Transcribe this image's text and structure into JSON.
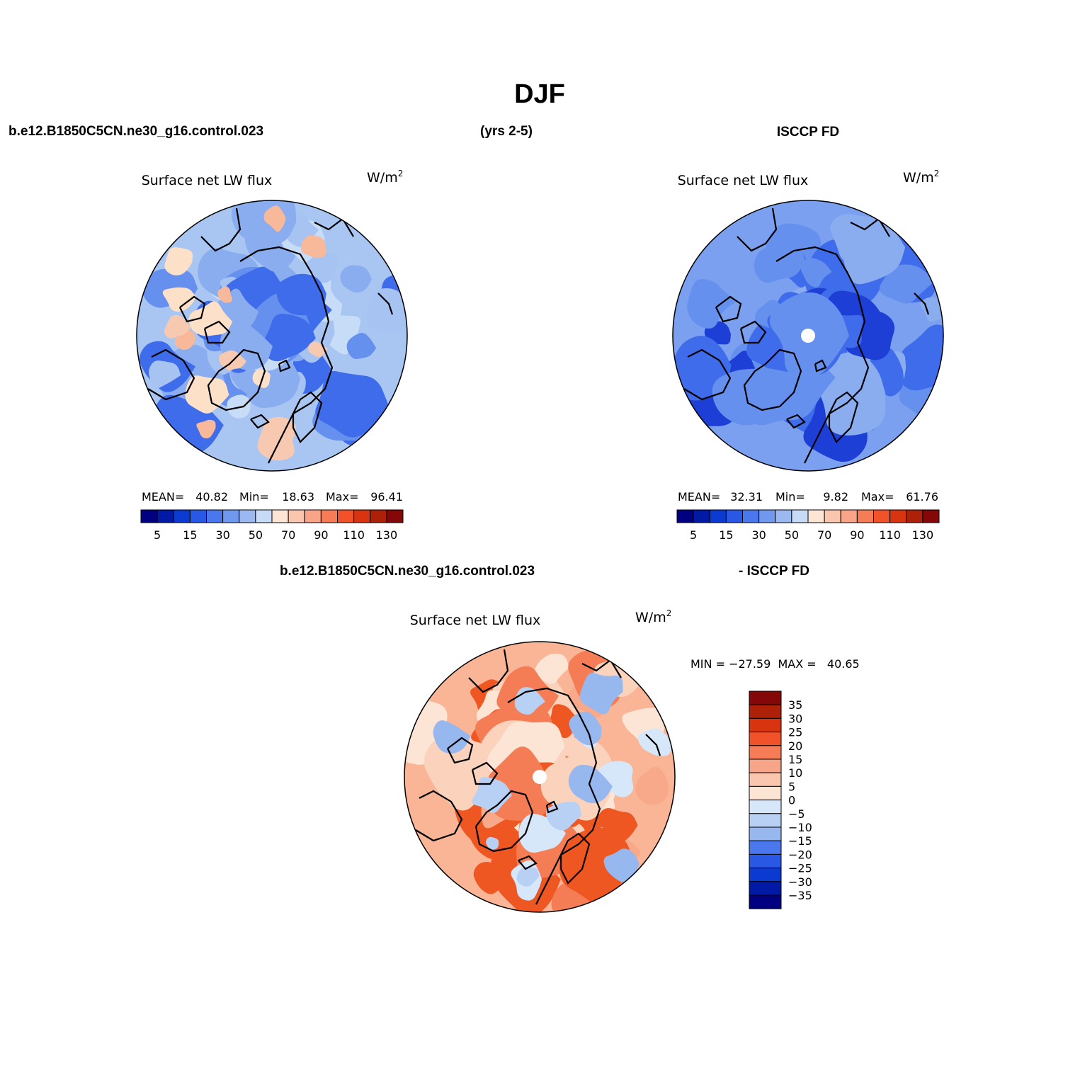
{
  "figure": {
    "season": "DJF",
    "case_name": "b.e12.B1850C5CN.ne30_g16.control.023",
    "years": "(yrs 2-5)",
    "obs_name": "ISCCP FD",
    "diff_case_name": "b.e12.B1850C5CN.ne30_g16.control.023",
    "diff_obs_name": "- ISCCP FD"
  },
  "panels": [
    {
      "id": "model",
      "variable": "Surface net LW flux",
      "units_base": "W/m",
      "units_exp": "2",
      "stats": {
        "mean_label": "MEAN=",
        "mean": "40.82",
        "min_label": "Min=",
        "min": "18.63",
        "max_label": "Max=",
        "max": "96.41"
      },
      "field_palette": [
        "#c7dcf6",
        "#a6c3f2",
        "#8aadf0",
        "#6590ee",
        "#3f6cea"
      ],
      "warm_patches": [
        "#fde0c8",
        "#f8b89a",
        "#f7c9b0"
      ]
    },
    {
      "id": "obs",
      "variable": "Surface net LW flux",
      "units_base": "W/m",
      "units_exp": "2",
      "stats": {
        "mean_label": "MEAN=",
        "mean": "32.31",
        "min_label": "Min=",
        "min": "9.82",
        "max_label": "Max=",
        "max": "61.76"
      },
      "field_palette": [
        "#8aadf0",
        "#6590ee",
        "#3f6cea",
        "#1d3fd6"
      ],
      "pole_hole": true
    },
    {
      "id": "diff",
      "variable": "Surface net LW flux",
      "units_base": "W/m",
      "units_exp": "2",
      "stats_text": "MIN = −27.59  MAX =   40.65",
      "field_palette": [
        "#fbd2bb",
        "#f8a989",
        "#f47d56",
        "#ef5722",
        "#fde5d6"
      ],
      "cool_patches": [
        "#d6e7fa",
        "#b8d0f4",
        "#97b7ef"
      ],
      "pole_hole": true
    }
  ],
  "abs_colorbar": {
    "colors": [
      "#000080",
      "#001aa6",
      "#0a3ad0",
      "#2858e4",
      "#4a78ec",
      "#7198ef",
      "#9cb8f1",
      "#c8dbf6",
      "#fde5d6",
      "#fac6ae",
      "#f7a488",
      "#f57c56",
      "#f2522a",
      "#d8340f",
      "#ad2108",
      "#850808"
    ],
    "tick_labels": [
      "5",
      "15",
      "30",
      "50",
      "70",
      "90",
      "110",
      "130"
    ]
  },
  "diff_colorbar": {
    "colors_top_to_bottom": [
      "#850808",
      "#ad2108",
      "#d8340f",
      "#f2522a",
      "#f57c56",
      "#f7a488",
      "#fac6ae",
      "#fde5d6",
      "#d6e7fa",
      "#b8d0f4",
      "#97b7ef",
      "#4a78ec",
      "#2858e4",
      "#0a3ad0",
      "#001aa6",
      "#000080"
    ],
    "tick_labels_top_to_bottom": [
      "35",
      "30",
      "25",
      "20",
      "15",
      "10",
      "5",
      "0",
      "−5",
      "−10",
      "−15",
      "−20",
      "−25",
      "−30",
      "−35"
    ]
  }
}
